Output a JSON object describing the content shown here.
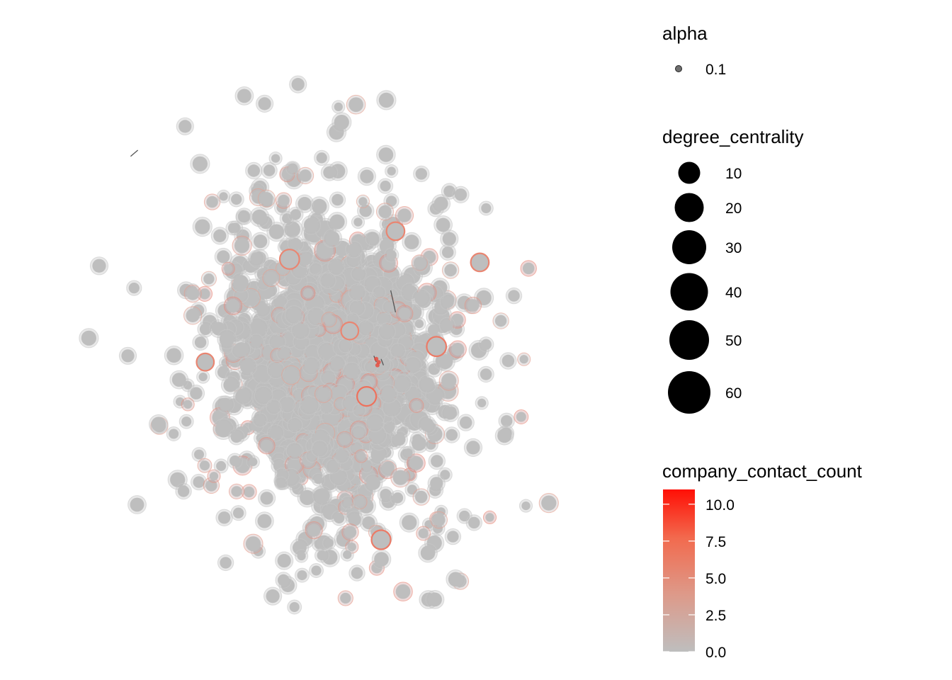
{
  "chart_data": {
    "type": "scatter",
    "title": "",
    "xlabel": "",
    "ylabel": "",
    "grid": false,
    "legend_position": "right",
    "point_color_low": "#BEBEBE",
    "point_color_high": "#FF0000",
    "point_base_color": "#BEBEBE",
    "point_alpha": 0.1,
    "legends": {
      "alpha": {
        "title": "alpha",
        "labels": [
          "0.1"
        ]
      },
      "size": {
        "title": "degree_centrality",
        "breaks": [
          10,
          20,
          30,
          40,
          50,
          60
        ],
        "labels": [
          "10",
          "20",
          "30",
          "40",
          "50",
          "60"
        ]
      },
      "color": {
        "title": "company_contact_count",
        "breaks": [
          0.0,
          2.5,
          5.0,
          7.5,
          10.0
        ],
        "labels": [
          "0.0",
          "2.5",
          "5.0",
          "7.5",
          "10.0"
        ],
        "range": [
          0,
          11
        ]
      }
    },
    "highlighted_nodes": [
      {
        "x": 0.07,
        "y": 0.12,
        "degree_centrality": 6,
        "company_contact_count": 2
      },
      {
        "x": 0.14,
        "y": -0.09,
        "degree_centrality": 9,
        "company_contact_count": 4
      },
      {
        "x": 0.43,
        "y": 0.07,
        "degree_centrality": 10,
        "company_contact_count": 3
      },
      {
        "x": 0.61,
        "y": 0.34,
        "degree_centrality": 7,
        "company_contact_count": 2
      },
      {
        "x": -0.53,
        "y": 0.02,
        "degree_centrality": 6,
        "company_contact_count": 2
      },
      {
        "x": 0.2,
        "y": -0.55,
        "degree_centrality": 9,
        "company_contact_count": 3
      },
      {
        "x": 0.26,
        "y": 0.44,
        "degree_centrality": 7,
        "company_contact_count": 2
      },
      {
        "x": -0.18,
        "y": 0.35,
        "degree_centrality": 10,
        "company_contact_count": 2
      }
    ]
  }
}
